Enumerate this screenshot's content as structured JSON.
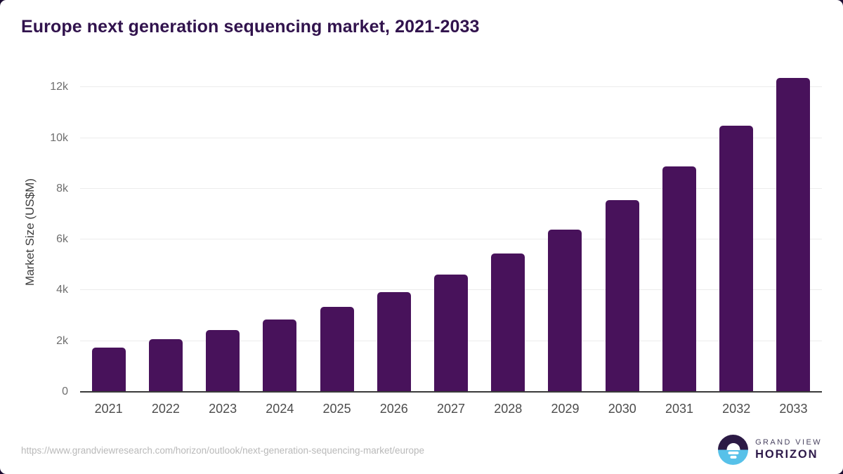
{
  "chart_data": {
    "type": "bar",
    "title": "Europe next generation sequencing market, 2021-2033",
    "xlabel": "",
    "ylabel": "Market Size (US$M)",
    "categories": [
      "2021",
      "2022",
      "2023",
      "2024",
      "2025",
      "2026",
      "2027",
      "2028",
      "2029",
      "2030",
      "2031",
      "2032",
      "2033"
    ],
    "values": [
      1750,
      2070,
      2440,
      2860,
      3340,
      3920,
      4620,
      5440,
      6400,
      7550,
      8890,
      10480,
      12360
    ],
    "ylim": [
      0,
      12670
    ],
    "yticks": [
      {
        "value": 0,
        "label": "0"
      },
      {
        "value": 2000,
        "label": "2k"
      },
      {
        "value": 4000,
        "label": "4k"
      },
      {
        "value": 6000,
        "label": "6k"
      },
      {
        "value": 8000,
        "label": "8k"
      },
      {
        "value": 10000,
        "label": "10k"
      },
      {
        "value": 12000,
        "label": "12k"
      }
    ],
    "grid": true,
    "legend_position": "none",
    "bar_color": "#48125b",
    "gridline_color": "#ececec",
    "axis_line_color": "#3a3a3a"
  },
  "footer": {
    "source_url": "https://www.grandviewresearch.com/horizon/outlook/next-generation-sequencing-market/europe",
    "logo": {
      "top_text": "GRAND VIEW",
      "bottom_text": "HORIZON",
      "circle_top_color": "#2c1a45",
      "circle_bottom_color": "#57c1e9"
    }
  },
  "colors": {
    "title": "#31134d",
    "background": "#ffffff"
  }
}
